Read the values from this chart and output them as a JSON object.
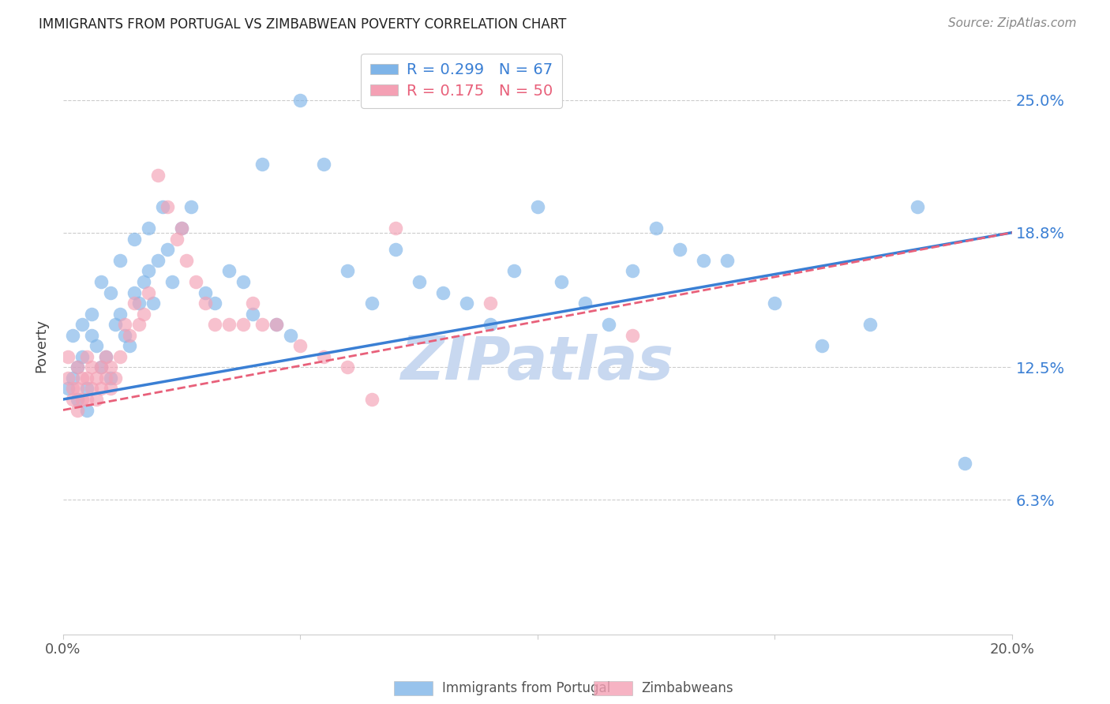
{
  "title": "IMMIGRANTS FROM PORTUGAL VS ZIMBABWEAN POVERTY CORRELATION CHART",
  "source": "Source: ZipAtlas.com",
  "ylabel": "Poverty",
  "ytick_labels": [
    "25.0%",
    "18.8%",
    "12.5%",
    "6.3%"
  ],
  "ytick_values": [
    0.25,
    0.188,
    0.125,
    0.063
  ],
  "xlim": [
    0.0,
    0.2
  ],
  "ylim": [
    0.0,
    0.27
  ],
  "blue_R": 0.299,
  "blue_N": 67,
  "pink_R": 0.175,
  "pink_N": 50,
  "blue_color": "#7EB4E8",
  "pink_color": "#F4A0B4",
  "blue_line_color": "#3A7FD4",
  "pink_line_color": "#E8607A",
  "watermark": "ZIPatlas",
  "watermark_color": "#C8D8F0",
  "blue_points_x": [
    0.001,
    0.002,
    0.003,
    0.003,
    0.004,
    0.005,
    0.005,
    0.006,
    0.007,
    0.008,
    0.009,
    0.01,
    0.011,
    0.012,
    0.013,
    0.014,
    0.015,
    0.016,
    0.017,
    0.018,
    0.019,
    0.02,
    0.022,
    0.023,
    0.025,
    0.027,
    0.03,
    0.032,
    0.035,
    0.038,
    0.04,
    0.042,
    0.045,
    0.048,
    0.05,
    0.055,
    0.06,
    0.065,
    0.07,
    0.075,
    0.08,
    0.085,
    0.09,
    0.095,
    0.1,
    0.105,
    0.11,
    0.115,
    0.12,
    0.125,
    0.13,
    0.135,
    0.14,
    0.15,
    0.16,
    0.17,
    0.18,
    0.19,
    0.002,
    0.004,
    0.006,
    0.008,
    0.01,
    0.012,
    0.015,
    0.018,
    0.021
  ],
  "blue_points_y": [
    0.115,
    0.12,
    0.11,
    0.125,
    0.13,
    0.115,
    0.105,
    0.14,
    0.135,
    0.125,
    0.13,
    0.12,
    0.145,
    0.15,
    0.14,
    0.135,
    0.16,
    0.155,
    0.165,
    0.17,
    0.155,
    0.175,
    0.18,
    0.165,
    0.19,
    0.2,
    0.16,
    0.155,
    0.17,
    0.165,
    0.15,
    0.22,
    0.145,
    0.14,
    0.25,
    0.22,
    0.17,
    0.155,
    0.18,
    0.165,
    0.16,
    0.155,
    0.145,
    0.17,
    0.2,
    0.165,
    0.155,
    0.145,
    0.17,
    0.19,
    0.18,
    0.175,
    0.175,
    0.155,
    0.135,
    0.145,
    0.2,
    0.08,
    0.14,
    0.145,
    0.15,
    0.165,
    0.16,
    0.175,
    0.185,
    0.19,
    0.2
  ],
  "pink_points_x": [
    0.001,
    0.001,
    0.002,
    0.002,
    0.003,
    0.003,
    0.003,
    0.004,
    0.004,
    0.005,
    0.005,
    0.005,
    0.006,
    0.006,
    0.007,
    0.007,
    0.008,
    0.008,
    0.009,
    0.009,
    0.01,
    0.01,
    0.011,
    0.012,
    0.013,
    0.014,
    0.015,
    0.016,
    0.017,
    0.018,
    0.02,
    0.022,
    0.024,
    0.025,
    0.026,
    0.028,
    0.03,
    0.032,
    0.035,
    0.038,
    0.04,
    0.042,
    0.045,
    0.05,
    0.055,
    0.06,
    0.065,
    0.07,
    0.09,
    0.12
  ],
  "pink_points_y": [
    0.13,
    0.12,
    0.115,
    0.11,
    0.125,
    0.115,
    0.105,
    0.12,
    0.11,
    0.13,
    0.12,
    0.11,
    0.125,
    0.115,
    0.12,
    0.11,
    0.125,
    0.115,
    0.13,
    0.12,
    0.115,
    0.125,
    0.12,
    0.13,
    0.145,
    0.14,
    0.155,
    0.145,
    0.15,
    0.16,
    0.215,
    0.2,
    0.185,
    0.19,
    0.175,
    0.165,
    0.155,
    0.145,
    0.145,
    0.145,
    0.155,
    0.145,
    0.145,
    0.135,
    0.13,
    0.125,
    0.11,
    0.19,
    0.155,
    0.14
  ]
}
